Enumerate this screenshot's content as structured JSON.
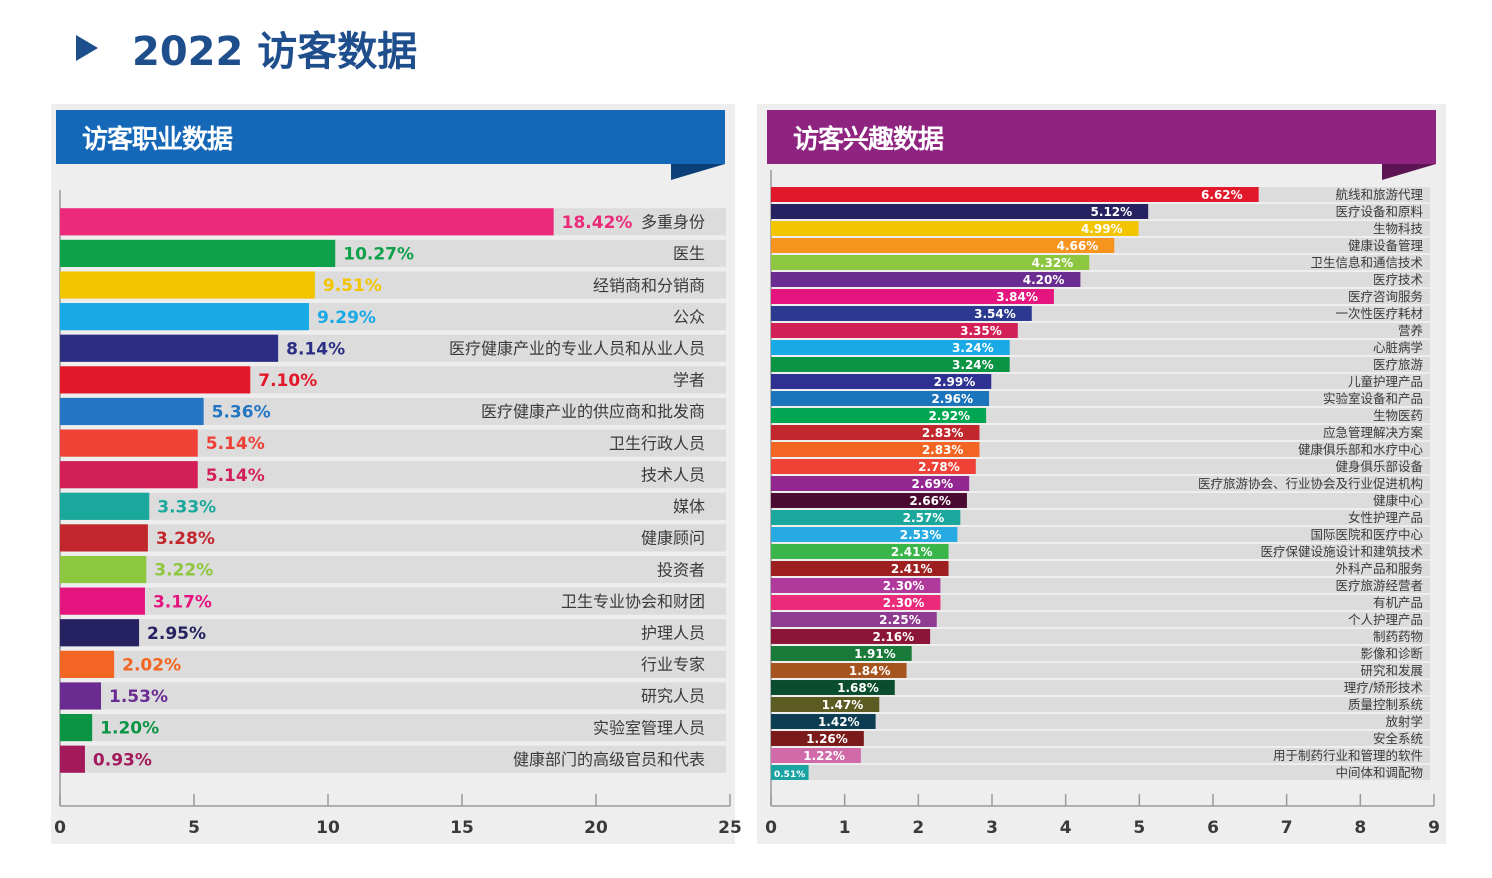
{
  "page": {
    "title": "2022 访客数据"
  },
  "chart_data": [
    {
      "type": "bar",
      "orientation": "horizontal",
      "title": "访客职业数据",
      "xlim": [
        0,
        25
      ],
      "xticks": [
        0,
        5,
        10,
        15,
        20,
        25
      ],
      "grid": false,
      "value_suffix": "%",
      "categories": [
        "多重身份",
        "医生",
        "经销商和分销商",
        "公众",
        "医疗健康产业的专业人员和从业人员",
        "学者",
        "医疗健康产业的供应商和批发商",
        "卫生行政人员",
        "技术人员",
        "媒体",
        "健康顾问",
        "投资者",
        "卫生专业协会和财团",
        "护理人员",
        "行业专家",
        "研究人员",
        "实验室管理人员",
        "健康部门的高级官员和代表"
      ],
      "values": [
        18.42,
        10.27,
        9.51,
        9.29,
        8.14,
        7.1,
        5.36,
        5.14,
        5.14,
        3.33,
        3.28,
        3.22,
        3.17,
        2.95,
        2.02,
        1.53,
        1.2,
        0.93
      ],
      "colors": [
        "#ec2a7a",
        "#0fa14a",
        "#f2c500",
        "#18a9e6",
        "#2b2e83",
        "#e3172a",
        "#2475c2",
        "#ef4136",
        "#d31f57",
        "#1aa89c",
        "#c1272d",
        "#8dc63f",
        "#e5157f",
        "#262262",
        "#f26522",
        "#6a2c91",
        "#0b9444",
        "#a3195b"
      ]
    },
    {
      "type": "bar",
      "orientation": "horizontal",
      "title": "访客兴趣数据",
      "xlim": [
        0,
        9
      ],
      "xticks": [
        0,
        1,
        2,
        3,
        4,
        5,
        6,
        7,
        8,
        9
      ],
      "grid": false,
      "value_suffix": "%",
      "categories": [
        "航线和旅游代理",
        "医疗设备和原料",
        "生物科技",
        "健康设备管理",
        "卫生信息和通信技术",
        "医疗技术",
        "医疗咨询服务",
        "一次性医疗耗材",
        "营养",
        "心脏病学",
        "医疗旅游",
        "儿童护理产品",
        "实验室设备和产品",
        "生物医药",
        "应急管理解决方案",
        "健康俱乐部和水疗中心",
        "健身俱乐部设备",
        "医疗旅游协会、行业协会及行业促进机构",
        "健康中心",
        "女性护理产品",
        "国际医院和医疗中心",
        "医疗保健设施设计和建筑技术",
        "外科产品和服务",
        "医疗旅游经营者",
        "有机产品",
        "个人护理产品",
        "制药药物",
        "影像和诊断",
        "研究和发展",
        "理疗/矫形技术",
        "质量控制系统",
        "放射学",
        "安全系统",
        "用于制药行业和管理的软件",
        "中间体和调配物"
      ],
      "values": [
        6.62,
        5.12,
        4.99,
        4.66,
        4.32,
        4.2,
        3.84,
        3.54,
        3.35,
        3.24,
        3.24,
        2.99,
        2.96,
        2.92,
        2.83,
        2.83,
        2.78,
        2.69,
        2.66,
        2.57,
        2.53,
        2.41,
        2.41,
        2.3,
        2.3,
        2.25,
        2.16,
        1.91,
        1.84,
        1.68,
        1.47,
        1.42,
        1.26,
        1.22,
        0.51
      ],
      "colors": [
        "#e3172a",
        "#262262",
        "#f2c500",
        "#f7941d",
        "#8dc63f",
        "#6a2c91",
        "#e5157f",
        "#2b3990",
        "#d31f57",
        "#18a9e6",
        "#0b9444",
        "#2e3192",
        "#1c75bc",
        "#00a651",
        "#c1272d",
        "#f26522",
        "#ef4136",
        "#92278f",
        "#4b0a32",
        "#1aa89c",
        "#27aae1",
        "#39b54a",
        "#9e1f1f",
        "#b03a9c",
        "#ec2a7a",
        "#8e3b91",
        "#8a1538",
        "#1a7a3a",
        "#a6541e",
        "#0a4d2e",
        "#5c5c22",
        "#0c3d52",
        "#7a1a1a",
        "#d16aa8",
        "#1aa3a3"
      ]
    }
  ]
}
